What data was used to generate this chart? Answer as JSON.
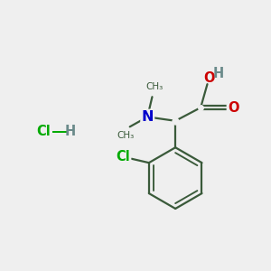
{
  "bg_color": "#efefef",
  "bond_color": "#3a5a3a",
  "bond_width": 1.6,
  "atom_colors": {
    "C": "#3a5a3a",
    "N": "#0000cc",
    "O": "#cc0000",
    "Cl": "#00aa00",
    "H": "#6a8a8a"
  },
  "font_size": 10.5,
  "font_size_small": 8.5
}
